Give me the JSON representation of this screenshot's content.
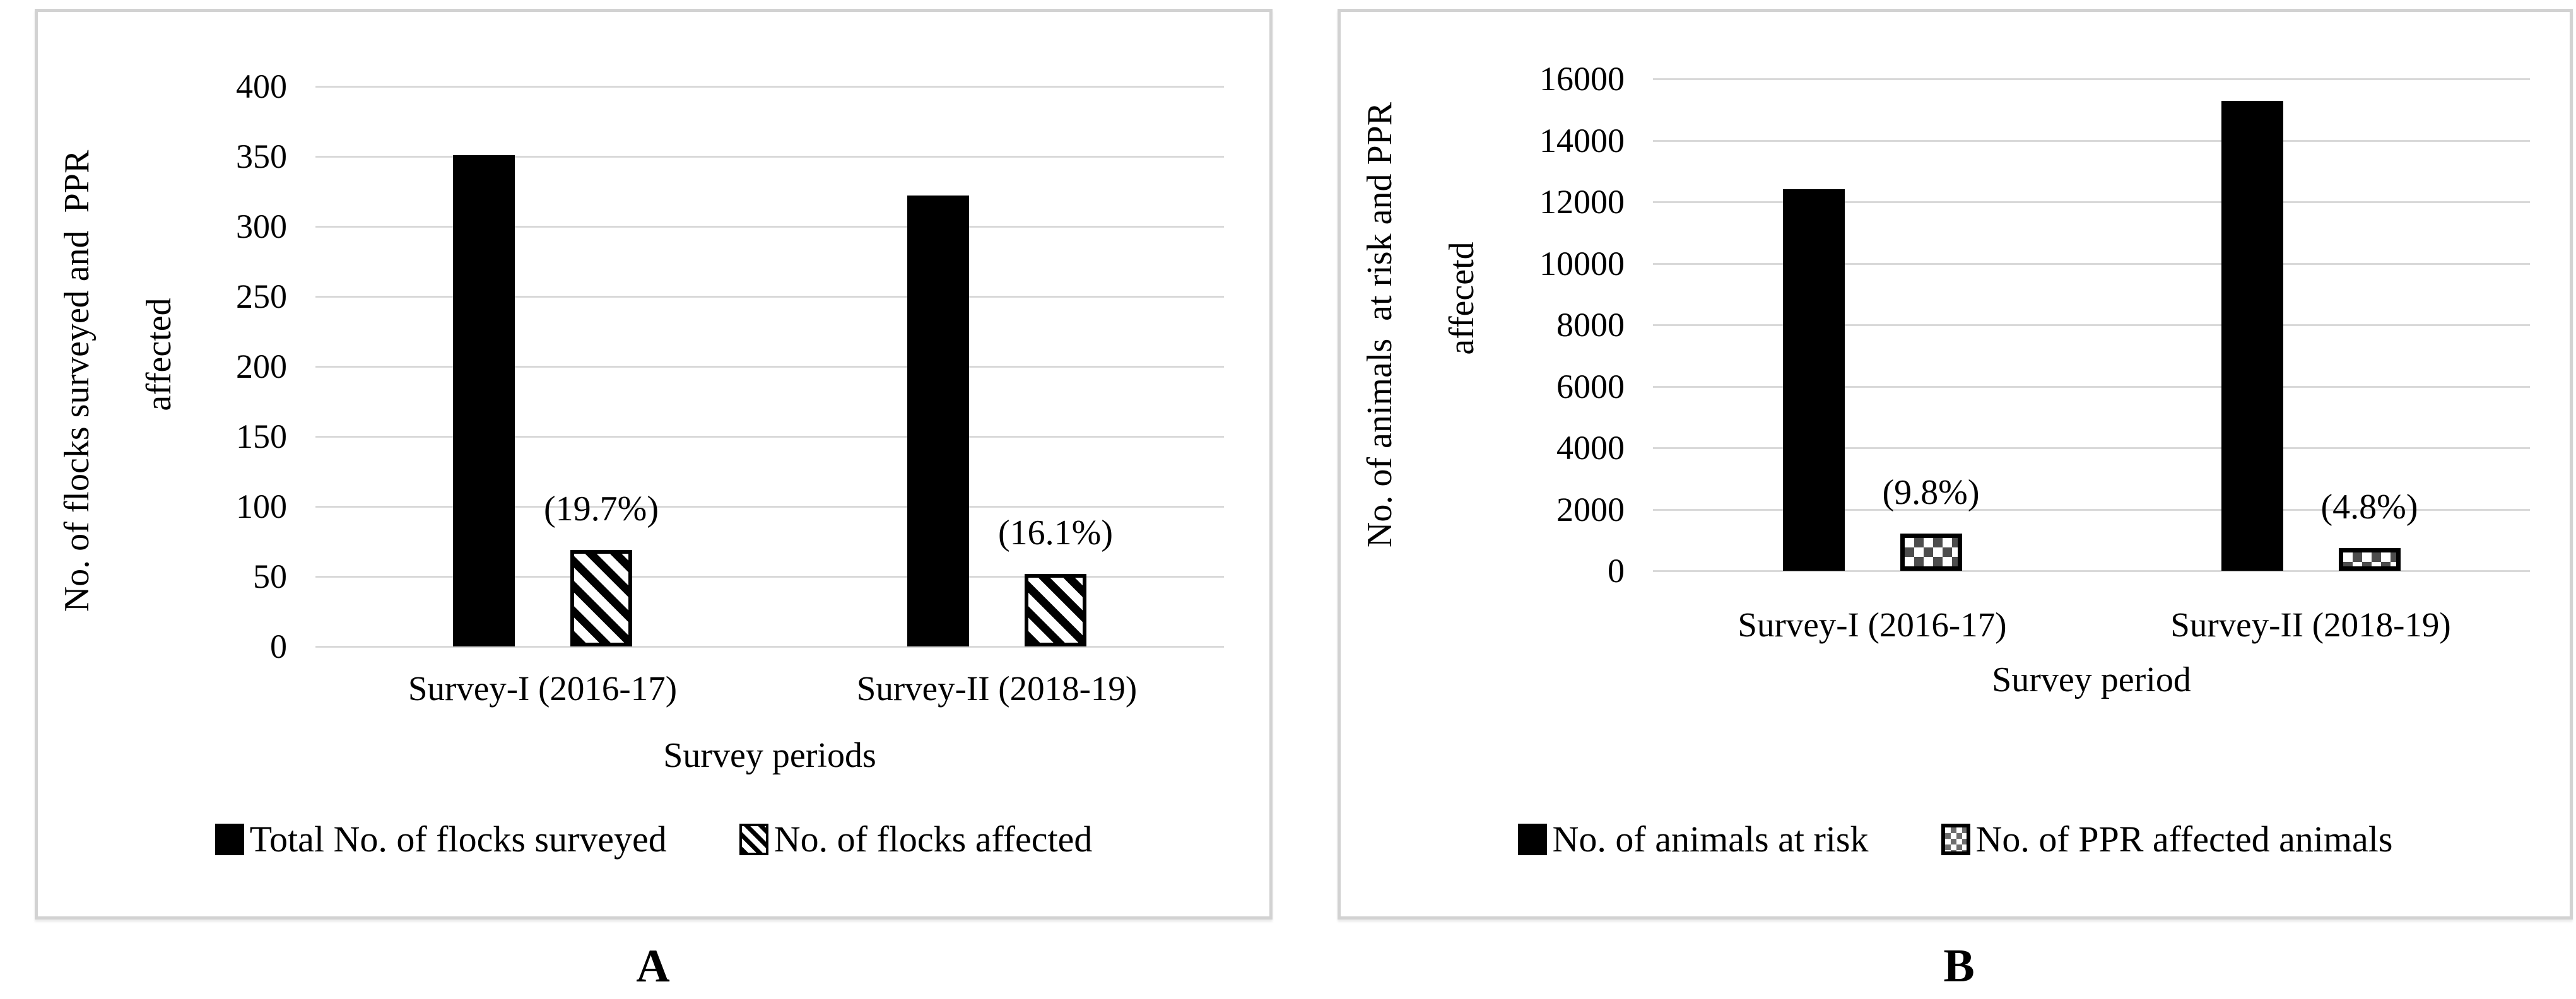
{
  "style": {
    "bar_color": "#000000",
    "gridline_color": "#d9d9d9",
    "panel_border_color": "#d2d2d2",
    "checker_fill_color": "#4d4d4d",
    "background": "#ffffff"
  },
  "chart_data": [
    {
      "type": "bar",
      "panel_label": "A",
      "categories": [
        "Survey-I (2016-17)",
        "Survey-II (2018-19)"
      ],
      "series": [
        {
          "name": "Total No. of flocks surveyed",
          "values": [
            351,
            322
          ],
          "pattern": "solid-black"
        },
        {
          "name": "No. of flocks affected",
          "values": [
            69,
            52
          ],
          "pattern": "diagonal-stripes",
          "data_labels": [
            "(19.7%)",
            "(16.1%)"
          ]
        }
      ],
      "xlabel": "Survey periods",
      "ylabel": "No. of flocks surveyed and  PPR affected",
      "ylabel_lines": [
        "No. of flocks surveyed and  PPR",
        "affected"
      ],
      "ylim": [
        0,
        400
      ],
      "ytick_step": 50,
      "yticks": [
        400,
        350,
        300,
        250,
        200,
        150,
        100,
        50,
        0
      ],
      "grid": "horizontal",
      "legend_position": "bottom"
    },
    {
      "type": "bar",
      "panel_label": "B",
      "categories": [
        "Survey-I (2016-17)",
        "Survey-II (2018-19)"
      ],
      "series": [
        {
          "name": "No. of animals at risk",
          "values": [
            12407,
            15279
          ],
          "pattern": "solid-black"
        },
        {
          "name": "No. of PPR affected animals",
          "values": [
            1217,
            738
          ],
          "pattern": "checkerboard",
          "data_labels": [
            "(9.8%)",
            "(4.8%)"
          ]
        }
      ],
      "xlabel": "Survey period",
      "ylabel": "No. of animals at risk and PPR affecetd",
      "ylabel_lines": [
        "No. of animals  at risk and PPR",
        "affecetd"
      ],
      "ylim": [
        0,
        16000
      ],
      "ytick_step": 2000,
      "yticks": [
        16000,
        14000,
        12000,
        10000,
        8000,
        6000,
        4000,
        2000,
        0
      ],
      "grid": "horizontal",
      "legend_position": "bottom"
    }
  ]
}
